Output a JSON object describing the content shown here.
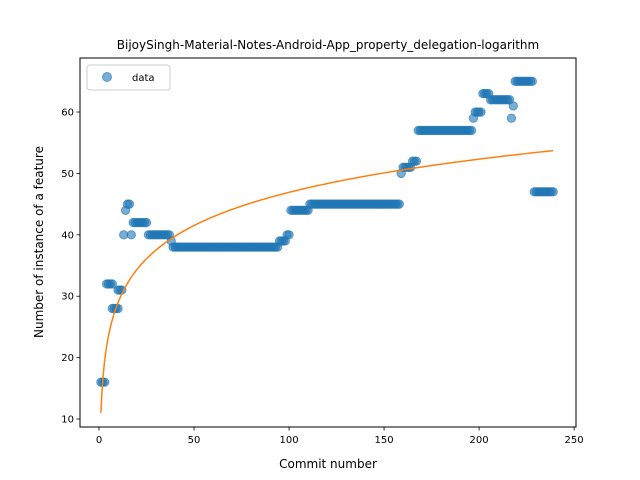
{
  "chart_data": {
    "type": "scatter",
    "title": "BijoySingh-Material-Notes-Android-App_property_delegation-logarithm",
    "xlabel": "Commit number",
    "ylabel": "Number of instance of a feature",
    "xlim": [
      -10,
      251
    ],
    "ylim": [
      8.7,
      68.8
    ],
    "xticks": [
      0,
      50,
      100,
      150,
      200,
      250
    ],
    "yticks": [
      10,
      20,
      30,
      40,
      50,
      60
    ],
    "legend": {
      "position": "top-left",
      "entries": [
        "data"
      ]
    },
    "colors": {
      "data": "#1f77b4",
      "fit": "#ff7f0e"
    },
    "segments": [
      {
        "x0": 1,
        "x1": 3,
        "y": 16
      },
      {
        "x0": 4,
        "x1": 7,
        "y": 32
      },
      {
        "x0": 7,
        "x1": 10,
        "y": 28
      },
      {
        "x0": 10,
        "x1": 12,
        "y": 31
      },
      {
        "x0": 13,
        "x1": 13,
        "y": 40
      },
      {
        "x0": 14,
        "x1": 14,
        "y": 44
      },
      {
        "x0": 15,
        "x1": 16,
        "y": 45
      },
      {
        "x0": 17,
        "x1": 17,
        "y": 40
      },
      {
        "x0": 18,
        "x1": 25,
        "y": 42
      },
      {
        "x0": 26,
        "x1": 37,
        "y": 40
      },
      {
        "x0": 38,
        "x1": 38,
        "y": 39
      },
      {
        "x0": 39,
        "x1": 94,
        "y": 38
      },
      {
        "x0": 95,
        "x1": 98,
        "y": 39
      },
      {
        "x0": 99,
        "x1": 100,
        "y": 40
      },
      {
        "x0": 101,
        "x1": 110,
        "y": 44
      },
      {
        "x0": 111,
        "x1": 158,
        "y": 45
      },
      {
        "x0": 159,
        "x1": 159,
        "y": 50
      },
      {
        "x0": 160,
        "x1": 164,
        "y": 51
      },
      {
        "x0": 165,
        "x1": 167,
        "y": 52
      },
      {
        "x0": 168,
        "x1": 196,
        "y": 57
      },
      {
        "x0": 197,
        "x1": 197,
        "y": 59
      },
      {
        "x0": 198,
        "x1": 201,
        "y": 60
      },
      {
        "x0": 202,
        "x1": 205,
        "y": 63
      },
      {
        "x0": 206,
        "x1": 216,
        "y": 62
      },
      {
        "x0": 217,
        "x1": 217,
        "y": 59
      },
      {
        "x0": 218,
        "x1": 218,
        "y": 61
      },
      {
        "x0": 219,
        "x1": 228,
        "y": 65
      },
      {
        "x0": 229,
        "x1": 239,
        "y": 47
      }
    ],
    "fit": {
      "model": "logarithmic",
      "a": 11.0,
      "b": 7.8,
      "x_start": 1,
      "x_end": 239,
      "formula": "y = a + b * ln(x)"
    }
  }
}
